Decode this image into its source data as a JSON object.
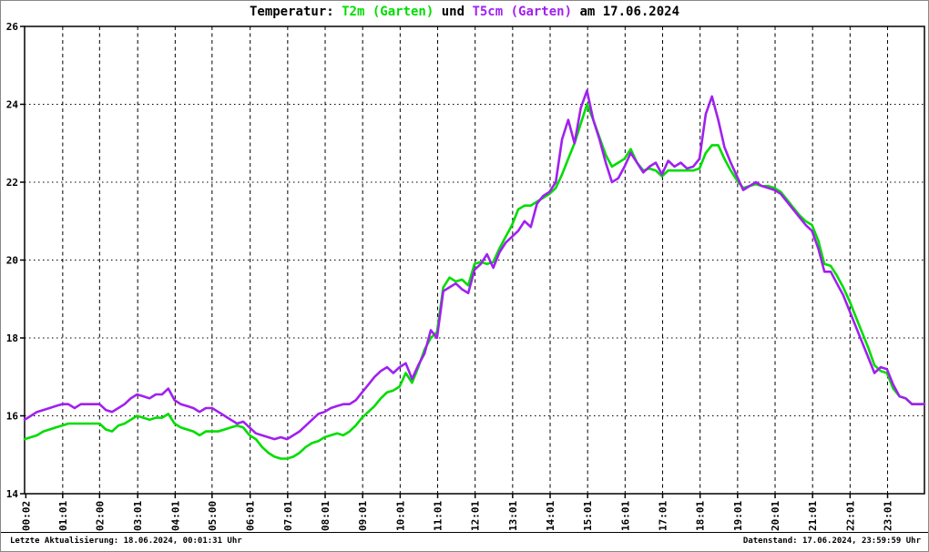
{
  "title": {
    "prefix": "Temperatur: ",
    "series1": "T2m (Garten)",
    "mid": " und ",
    "series2": "T5cm (Garten)",
    "suffix": " am 17.06.2024"
  },
  "footer": {
    "left": "Letzte Aktualisierung: 18.06.2024, 00:01:31 Uhr",
    "right": "Datenstand: 17.06.2024, 23:59:59 Uhr"
  },
  "colors": {
    "t2m": "#00dd00",
    "t5cm": "#a020f0",
    "grid": "#000000",
    "axis": "#000000",
    "background": "#ffffff"
  },
  "chart_data": {
    "type": "line",
    "title": "Temperatur: T2m (Garten) und T5cm (Garten) am 17.06.2024",
    "xlabel": "",
    "ylabel": "",
    "xlim": [
      0,
      24
    ],
    "ylim": [
      14,
      26
    ],
    "y_ticks": [
      14,
      16,
      18,
      20,
      22,
      24,
      26
    ],
    "x_tick_labels": [
      "00:02",
      "01:01",
      "02:00",
      "03:01",
      "04:01",
      "05:00",
      "06:01",
      "07:01",
      "08:01",
      "09:01",
      "10:01",
      "11:01",
      "12:01",
      "13:01",
      "14:01",
      "15:01",
      "16:01",
      "17:01",
      "18:01",
      "19:01",
      "20:01",
      "21:01",
      "22:01",
      "23:01"
    ],
    "grid": "on",
    "x_unit": "hours",
    "x_start_hour": 0,
    "x_step_minutes": 10,
    "series": [
      {
        "name": "T2m (Garten)",
        "color": "#00dd00",
        "values": [
          15.4,
          15.45,
          15.5,
          15.6,
          15.65,
          15.7,
          15.75,
          15.8,
          15.8,
          15.8,
          15.8,
          15.8,
          15.8,
          15.65,
          15.6,
          15.75,
          15.8,
          15.9,
          16.0,
          15.95,
          15.9,
          15.95,
          15.95,
          16.05,
          15.8,
          15.7,
          15.65,
          15.6,
          15.5,
          15.6,
          15.6,
          15.6,
          15.65,
          15.7,
          15.75,
          15.7,
          15.5,
          15.4,
          15.2,
          15.05,
          14.95,
          14.9,
          14.9,
          14.95,
          15.05,
          15.2,
          15.3,
          15.35,
          15.45,
          15.5,
          15.55,
          15.5,
          15.6,
          15.75,
          15.95,
          16.1,
          16.25,
          16.45,
          16.6,
          16.65,
          16.75,
          17.1,
          16.85,
          17.25,
          17.7,
          18.0,
          18.15,
          19.3,
          19.55,
          19.45,
          19.5,
          19.35,
          19.9,
          19.95,
          19.9,
          19.95,
          20.3,
          20.6,
          20.9,
          21.3,
          21.4,
          21.4,
          21.5,
          21.6,
          21.7,
          21.85,
          22.2,
          22.6,
          23.0,
          23.5,
          24.0,
          23.6,
          23.15,
          22.7,
          22.4,
          22.5,
          22.6,
          22.85,
          22.5,
          22.3,
          22.35,
          22.3,
          22.15,
          22.3,
          22.3,
          22.3,
          22.3,
          22.3,
          22.35,
          22.75,
          22.95,
          22.95,
          22.6,
          22.3,
          22.05,
          21.85,
          21.9,
          21.95,
          21.9,
          21.9,
          21.85,
          21.75,
          21.55,
          21.35,
          21.15,
          21.0,
          20.9,
          20.5,
          19.9,
          19.85,
          19.6,
          19.3,
          18.95,
          18.55,
          18.15,
          17.75,
          17.3,
          17.15,
          17.1,
          16.7,
          16.5,
          16.45,
          16.3,
          16.3,
          16.3
        ]
      },
      {
        "name": "T5cm (Garten)",
        "color": "#a020f0",
        "values": [
          15.9,
          16.0,
          16.1,
          16.15,
          16.2,
          16.25,
          16.3,
          16.3,
          16.2,
          16.3,
          16.3,
          16.3,
          16.3,
          16.15,
          16.1,
          16.2,
          16.3,
          16.45,
          16.55,
          16.5,
          16.45,
          16.55,
          16.55,
          16.7,
          16.4,
          16.3,
          16.25,
          16.2,
          16.1,
          16.2,
          16.2,
          16.1,
          16.0,
          15.9,
          15.8,
          15.85,
          15.7,
          15.55,
          15.5,
          15.45,
          15.4,
          15.45,
          15.4,
          15.5,
          15.6,
          15.75,
          15.9,
          16.05,
          16.1,
          16.2,
          16.25,
          16.3,
          16.3,
          16.4,
          16.6,
          16.8,
          17.0,
          17.15,
          17.25,
          17.1,
          17.25,
          17.35,
          16.95,
          17.3,
          17.6,
          18.2,
          18.0,
          19.2,
          19.3,
          19.4,
          19.25,
          19.15,
          19.75,
          19.9,
          20.15,
          19.8,
          20.2,
          20.45,
          20.6,
          20.75,
          21.0,
          20.85,
          21.45,
          21.65,
          21.75,
          22.0,
          23.1,
          23.6,
          23.0,
          23.9,
          24.35,
          23.6,
          23.1,
          22.5,
          22.0,
          22.1,
          22.4,
          22.75,
          22.5,
          22.25,
          22.4,
          22.5,
          22.2,
          22.55,
          22.4,
          22.5,
          22.35,
          22.4,
          22.6,
          23.75,
          24.2,
          23.6,
          22.9,
          22.5,
          22.15,
          21.8,
          21.9,
          22.0,
          21.9,
          21.85,
          21.8,
          21.7,
          21.5,
          21.3,
          21.1,
          20.9,
          20.75,
          20.3,
          19.7,
          19.7,
          19.4,
          19.1,
          18.7,
          18.3,
          17.9,
          17.5,
          17.1,
          17.25,
          17.2,
          16.8,
          16.5,
          16.45,
          16.3,
          16.3,
          16.3
        ]
      }
    ]
  }
}
